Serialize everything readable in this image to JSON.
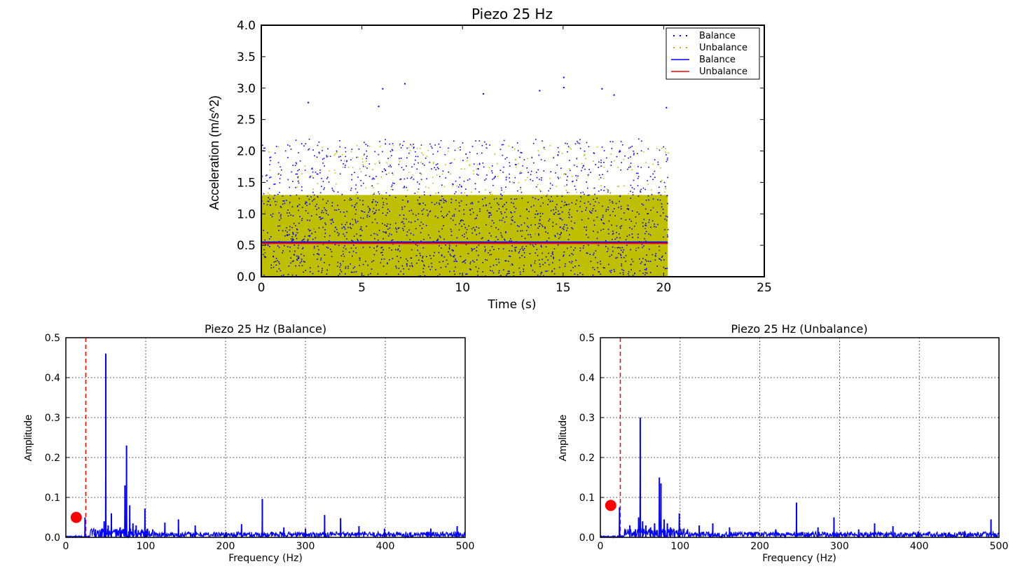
{
  "chart_data": [
    {
      "type": "scatter",
      "title": "Piezo 25 Hz",
      "xlabel": "Time (s)",
      "ylabel": "Acceleration (m/s^2)",
      "xlim": [
        0,
        25
      ],
      "ylim": [
        0.0,
        4.0
      ],
      "xticks": [
        "0",
        "5",
        "10",
        "15",
        "20",
        "25"
      ],
      "yticks": [
        "0.0",
        "0.5",
        "1.0",
        "1.5",
        "2.0",
        "2.5",
        "3.0",
        "3.5",
        "4.0"
      ],
      "legend_position": "top-right",
      "legend": [
        "Balance",
        "Unbalance",
        "Balance",
        "Unbalance"
      ],
      "series": [
        {
          "name": "Balance",
          "kind": "scatter",
          "color": "#0000ff",
          "x_range": [
            0,
            20.2
          ],
          "y_range": [
            0.0,
            3.2
          ],
          "mean": 0.55
        },
        {
          "name": "Unbalance",
          "kind": "scatter",
          "color": "#bfbf00",
          "x_range": [
            0,
            20.2
          ],
          "y_range": [
            0.0,
            2.8
          ],
          "mean": 0.53
        },
        {
          "name": "Balance",
          "kind": "line",
          "color": "#0000ff",
          "x": [
            0,
            20.2
          ],
          "y": [
            0.55,
            0.55
          ]
        },
        {
          "name": "Unbalance",
          "kind": "line",
          "color": "#ff0000",
          "x": [
            0,
            20.2
          ],
          "y": [
            0.53,
            0.53
          ]
        }
      ]
    },
    {
      "type": "line",
      "title": "Piezo 25 Hz (Balance)",
      "xlabel": "Frequency (Hz)",
      "ylabel": "Amplitude",
      "xlim": [
        0,
        500
      ],
      "ylim": [
        0.0,
        0.5
      ],
      "xticks": [
        "0",
        "100",
        "200",
        "300",
        "400",
        "500"
      ],
      "yticks": [
        "0.0",
        "0.1",
        "0.2",
        "0.3",
        "0.4",
        "0.5"
      ],
      "grid": true,
      "line_color": "#0000ff",
      "reference_line": {
        "x": 25,
        "color": "#ff0000",
        "style": "dashed"
      },
      "marker": {
        "x": 13,
        "y": 0.05,
        "color": "#ff0000"
      },
      "peaks": [
        {
          "x": 24,
          "y": 0.05
        },
        {
          "x": 37,
          "y": 0.02
        },
        {
          "x": 44,
          "y": 0.015
        },
        {
          "x": 48,
          "y": 0.04
        },
        {
          "x": 50,
          "y": 0.46
        },
        {
          "x": 53,
          "y": 0.03
        },
        {
          "x": 57,
          "y": 0.06
        },
        {
          "x": 63,
          "y": 0.02
        },
        {
          "x": 68,
          "y": 0.025
        },
        {
          "x": 74,
          "y": 0.13
        },
        {
          "x": 76,
          "y": 0.23
        },
        {
          "x": 80,
          "y": 0.08
        },
        {
          "x": 84,
          "y": 0.035
        },
        {
          "x": 88,
          "y": 0.03
        },
        {
          "x": 99,
          "y": 0.072
        },
        {
          "x": 124,
          "y": 0.037
        },
        {
          "x": 141,
          "y": 0.045
        },
        {
          "x": 162,
          "y": 0.03
        },
        {
          "x": 220,
          "y": 0.033
        },
        {
          "x": 246,
          "y": 0.096
        },
        {
          "x": 273,
          "y": 0.025
        },
        {
          "x": 300,
          "y": 0.022
        },
        {
          "x": 324,
          "y": 0.056
        },
        {
          "x": 344,
          "y": 0.048
        },
        {
          "x": 367,
          "y": 0.028
        },
        {
          "x": 399,
          "y": 0.022
        },
        {
          "x": 457,
          "y": 0.022
        },
        {
          "x": 490,
          "y": 0.028
        }
      ]
    },
    {
      "type": "line",
      "title": "Piezo 25 Hz (Unbalance)",
      "xlabel": "Frequency (Hz)",
      "ylabel": "Amplitude",
      "xlim": [
        0,
        500
      ],
      "ylim": [
        0.0,
        0.5
      ],
      "xticks": [
        "0",
        "100",
        "200",
        "300",
        "400",
        "500"
      ],
      "yticks": [
        "0.0",
        "0.1",
        "0.2",
        "0.3",
        "0.4",
        "0.5"
      ],
      "grid": true,
      "line_color": "#0000ff",
      "reference_line": {
        "x": 25,
        "color": "#ff0000",
        "style": "dashed"
      },
      "marker": {
        "x": 13,
        "y": 0.08,
        "color": "#ff0000"
      },
      "peaks": [
        {
          "x": 24,
          "y": 0.075
        },
        {
          "x": 37,
          "y": 0.03
        },
        {
          "x": 44,
          "y": 0.02
        },
        {
          "x": 48,
          "y": 0.05
        },
        {
          "x": 50,
          "y": 0.3
        },
        {
          "x": 53,
          "y": 0.04
        },
        {
          "x": 57,
          "y": 0.03
        },
        {
          "x": 63,
          "y": 0.025
        },
        {
          "x": 68,
          "y": 0.035
        },
        {
          "x": 74,
          "y": 0.15
        },
        {
          "x": 76,
          "y": 0.135
        },
        {
          "x": 80,
          "y": 0.045
        },
        {
          "x": 84,
          "y": 0.035
        },
        {
          "x": 88,
          "y": 0.025
        },
        {
          "x": 99,
          "y": 0.06
        },
        {
          "x": 124,
          "y": 0.03
        },
        {
          "x": 141,
          "y": 0.035
        },
        {
          "x": 162,
          "y": 0.025
        },
        {
          "x": 220,
          "y": 0.02
        },
        {
          "x": 246,
          "y": 0.087
        },
        {
          "x": 273,
          "y": 0.025
        },
        {
          "x": 293,
          "y": 0.05
        },
        {
          "x": 324,
          "y": 0.02
        },
        {
          "x": 344,
          "y": 0.035
        },
        {
          "x": 367,
          "y": 0.028
        },
        {
          "x": 399,
          "y": 0.015
        },
        {
          "x": 457,
          "y": 0.015
        },
        {
          "x": 490,
          "y": 0.045
        }
      ]
    }
  ]
}
